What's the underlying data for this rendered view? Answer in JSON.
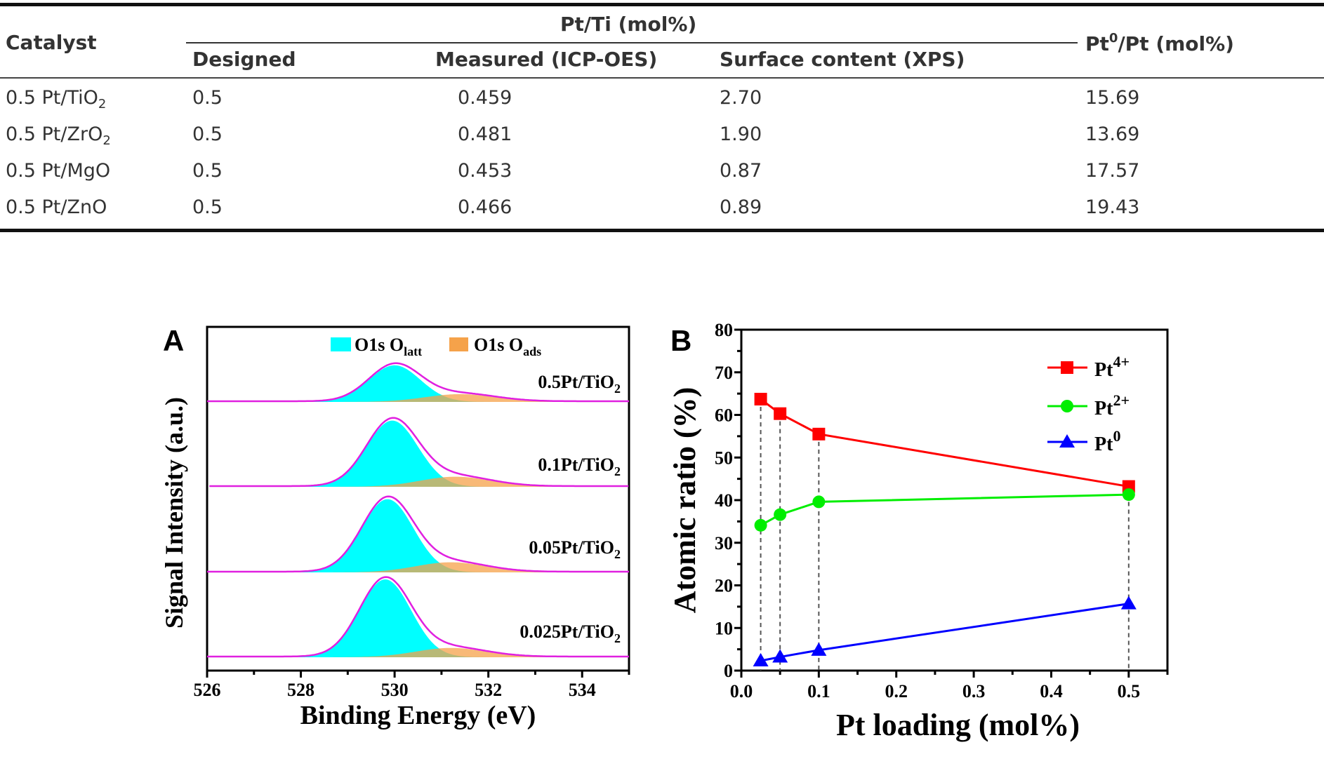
{
  "table": {
    "header_catalyst": "Catalyst",
    "header_group": "Pt/Ti (mol%)",
    "header_designed": "Designed",
    "header_measured": "Measured (ICP-OES)",
    "header_surface": "Surface content (XPS)",
    "header_pt0_pre": "Pt",
    "header_pt0_sup": "0",
    "header_pt0_post": "/Pt (mol%)",
    "rows": [
      {
        "cat": "0.5 Pt/TiO",
        "sub": "2",
        "designed": "0.5",
        "measured": "0.459",
        "surface": "2.70",
        "pt0": "15.69"
      },
      {
        "cat": "0.5 Pt/ZrO",
        "sub": "2",
        "designed": "0.5",
        "measured": "0.481",
        "surface": "1.90",
        "pt0": "13.69"
      },
      {
        "cat": "0.5 Pt/MgO",
        "sub": "",
        "designed": "0.5",
        "measured": "0.453",
        "surface": "0.87",
        "pt0": "17.57"
      },
      {
        "cat": "0.5 Pt/ZnO",
        "sub": "",
        "designed": "0.5",
        "measured": "0.466",
        "surface": "0.89",
        "pt0": "19.43"
      }
    ]
  },
  "chart_data": [
    {
      "type": "area",
      "panel_label": "A",
      "xlabel": "Binding Energy (eV)",
      "ylabel": "Signal Intensity (a.u.)",
      "xlim": [
        535,
        526
      ],
      "xlim_note": "ascending left to right 526-535",
      "xticks": [
        526,
        528,
        530,
        532,
        534
      ],
      "legend": [
        {
          "name": "O1s O",
          "sub": "latt",
          "color": "#00ffff"
        },
        {
          "name": "O1s O",
          "sub": "ads",
          "color": "#f5a24a"
        }
      ],
      "envelope_color": "#e020e0",
      "series": [
        {
          "label": "0.5Pt/TiO",
          "sub": "2",
          "latt_center": 530.0,
          "latt_height": 0.47,
          "ads_center": 531.4,
          "ads_height": 0.1
        },
        {
          "label": "0.1Pt/TiO",
          "sub": "2",
          "latt_center": 529.95,
          "latt_height": 0.85,
          "ads_center": 531.3,
          "ads_height": 0.13
        },
        {
          "label": "0.05Pt/TiO",
          "sub": "2",
          "latt_center": 529.85,
          "latt_height": 0.94,
          "ads_center": 531.2,
          "ads_height": 0.13
        },
        {
          "label": "0.025Pt/TiO",
          "sub": "2",
          "latt_center": 529.8,
          "latt_height": 1.0,
          "ads_center": 531.2,
          "ads_height": 0.12
        }
      ]
    },
    {
      "type": "line",
      "panel_label": "B",
      "xlabel": "Pt loading (mol%)",
      "ylabel": "Atomic ratio (%)",
      "xlim": [
        0,
        0.55
      ],
      "ylim": [
        0,
        80
      ],
      "xticks": [
        0.0,
        0.1,
        0.2,
        0.3,
        0.4,
        0.5
      ],
      "yticks": [
        0,
        10,
        20,
        30,
        40,
        50,
        60,
        70,
        80
      ],
      "x": [
        0.025,
        0.05,
        0.1,
        0.5
      ],
      "legend_position": "top-right",
      "series": [
        {
          "name": "Pt",
          "sup": "4+",
          "color": "#ff0000",
          "marker": "square",
          "values": [
            63.7,
            60.3,
            55.5,
            43.2
          ]
        },
        {
          "name": "Pt",
          "sup": "2+",
          "color": "#00ee00",
          "marker": "circle",
          "values": [
            34.1,
            36.6,
            39.6,
            41.3
          ]
        },
        {
          "name": "Pt",
          "sup": "0",
          "color": "#0000ff",
          "marker": "triangle",
          "values": [
            2.3,
            3.2,
            4.8,
            15.7
          ]
        }
      ]
    }
  ]
}
